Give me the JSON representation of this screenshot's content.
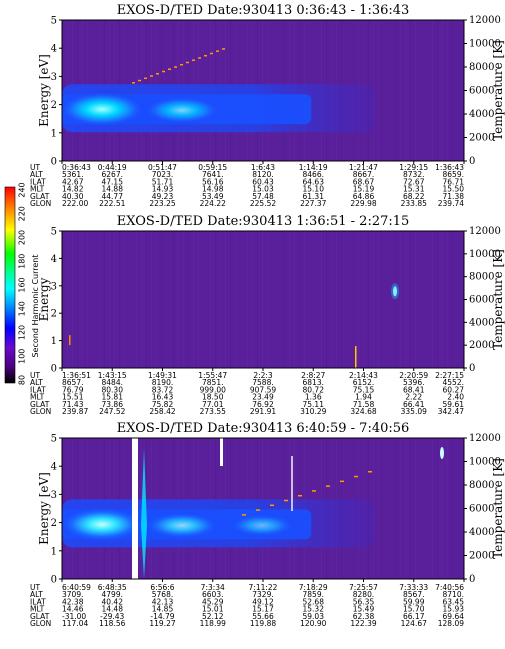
{
  "colorbar": {
    "label": "Second Harmonic Current",
    "ticks": [
      "240",
      "220",
      "200",
      "180",
      "160",
      "140",
      "120",
      "100",
      "80"
    ],
    "colors": [
      "#ff0000",
      "#ff7a00",
      "#ffff00",
      "#00ff00",
      "#00ff9a",
      "#00ffff",
      "#0080ff",
      "#0000ff",
      "#6a0acc",
      "#4a007a",
      "#000000"
    ]
  },
  "chart_data": [
    {
      "type": "heatmap",
      "title": "EXOS-D/TED   Date:930413  0:36:43 - 1:36:43",
      "ylabel": "Energy [eV]",
      "y2label": "Temperature [K]",
      "ylim": [
        0,
        5
      ],
      "y2lim": [
        0,
        12000
      ],
      "yticks": [
        "0",
        "1",
        "2",
        "3",
        "4",
        "5"
      ],
      "y2ticks": [
        "0",
        "2000",
        "4000",
        "6000",
        "8000",
        "10000",
        "12000"
      ],
      "background_color": "#5a1f9a",
      "peak_energy_ev": 1.8,
      "table": {
        "rows": [
          {
            "label": "UT",
            "values": [
              "0:36:43",
              "0:44:19",
              "0:51:47",
              "0:59:15",
              "1:6:43",
              "1:14:19",
              "1:21:47",
              "1:29:15",
              "1:36:43"
            ]
          },
          {
            "label": "ALT",
            "values": [
              "5361.",
              "6267.",
              "7023.",
              "7641.",
              "8120.",
              "8466.",
              "8667.",
              "8732.",
              "8659."
            ]
          },
          {
            "label": "ILAT",
            "values": [
              "42.67",
              "47.15",
              "51.71",
              "56.16",
              "60.43",
              "64.63",
              "68.67",
              "72.67",
              "76.71"
            ]
          },
          {
            "label": "MLT",
            "values": [
              "14.82",
              "14.88",
              "14.93",
              "14.98",
              "15.03",
              "15.10",
              "15.19",
              "15.31",
              "15.50"
            ]
          },
          {
            "label": "GLAT",
            "values": [
              "40.30",
              "44.77",
              "49.23",
              "53.49",
              "57.48",
              "61.31",
              "64.86",
              "68.22",
              "71.38"
            ]
          },
          {
            "label": "GLON",
            "values": [
              "222.00",
              "222.51",
              "223.25",
              "224.22",
              "225.52",
              "227.37",
              "229.98",
              "233.85",
              "239.74"
            ]
          }
        ]
      }
    },
    {
      "type": "heatmap",
      "title": "EXOS-D/TED   Date:930413  1:36:51 - 2:27:15",
      "ylabel": "Energy",
      "y2label": "Temperature [K]",
      "ylim": [
        0,
        5
      ],
      "y2lim": [
        0,
        12000
      ],
      "yticks": [
        "0",
        "1",
        "2",
        "3",
        "4",
        "5"
      ],
      "y2ticks": [
        "0",
        "2000",
        "4000",
        "6000",
        "8000",
        "10000",
        "12000"
      ],
      "background_color": "#5a1f9a",
      "table": {
        "rows": [
          {
            "label": "UT",
            "values": [
              "1:36:51",
              "1:43:15",
              "1:49:31",
              "1:55:47",
              "2:2:3",
              "2:8:27",
              "2:14:43",
              "2:20:59",
              "2:27:15"
            ]
          },
          {
            "label": "ALT",
            "values": [
              "8657.",
              "8484.",
              "8190.",
              "7851.",
              "7588.",
              "6813.",
              "6152.",
              "5396.",
              "4552."
            ]
          },
          {
            "label": "ILAT",
            "values": [
              "76.79",
              "80.30",
              "83.72",
              "999.00",
              "907.59",
              "80.72",
              "75.15",
              "68.41",
              "60.27"
            ]
          },
          {
            "label": "MLT",
            "values": [
              "15.51",
              "15.81",
              "16.43",
              "18.50",
              "23.49",
              "1.36",
              "1.94",
              "2.22",
              "2.40"
            ]
          },
          {
            "label": "GLAT",
            "values": [
              "71.43",
              "73.86",
              "75.82",
              "77.01",
              "76.92",
              "75.11",
              "71.58",
              "66.41",
              "59.61"
            ]
          },
          {
            "label": "GLON",
            "values": [
              "239.87",
              "247.52",
              "258.42",
              "273.55",
              "291.91",
              "310.29",
              "324.68",
              "335.09",
              "342.47"
            ]
          }
        ]
      }
    },
    {
      "type": "heatmap",
      "title": "EXOS-D/TED   Date:930413  6:40:59 - 7:40:56",
      "ylabel": "Energy [eV]",
      "y2label": "Temperature [K]",
      "ylim": [
        0,
        5
      ],
      "y2lim": [
        0,
        12000
      ],
      "yticks": [
        "0",
        "1",
        "2",
        "3",
        "4",
        "5"
      ],
      "y2ticks": [
        "0",
        "2000",
        "4000",
        "6000",
        "8000",
        "10000",
        "12000"
      ],
      "background_color": "#5a1f9a",
      "peak_energy_ev": 1.9,
      "table": {
        "rows": [
          {
            "label": "UT",
            "values": [
              "6:40:59",
              "6:48:35",
              "6:56:6",
              "7:3:34",
              "7:11:22",
              "7:18:29",
              "7:25:57",
              "7:33:33",
              "7:40:56"
            ]
          },
          {
            "label": "ALT",
            "values": [
              "3709.",
              "4799.",
              "5768.",
              "6603.",
              "7329.",
              "7859.",
              "8280.",
              "8567.",
              "8710."
            ]
          },
          {
            "label": "ILAT",
            "values": [
              "42.38",
              "40.42",
              "42.13",
              "45.29",
              "49.12",
              "52.68",
              "56.35",
              "59.99",
              "63.45"
            ]
          },
          {
            "label": "MLT",
            "values": [
              "14.46",
              "14.48",
              "14.85",
              "15.01",
              "15.17",
              "15.32",
              "15.49",
              "15.70",
              "15.93"
            ]
          },
          {
            "label": "GLAT",
            "values": [
              "-31.00",
              "-29.43",
              "-14.79",
              "52.12",
              "55.66",
              "59.03",
              "62.38",
              "66.17",
              "69.64"
            ]
          },
          {
            "label": "GLON",
            "values": [
              "117.04",
              "118.56",
              "119.27",
              "118.99",
              "119.88",
              "120.90",
              "122.39",
              "124.67",
              "128.09"
            ]
          }
        ]
      }
    }
  ]
}
